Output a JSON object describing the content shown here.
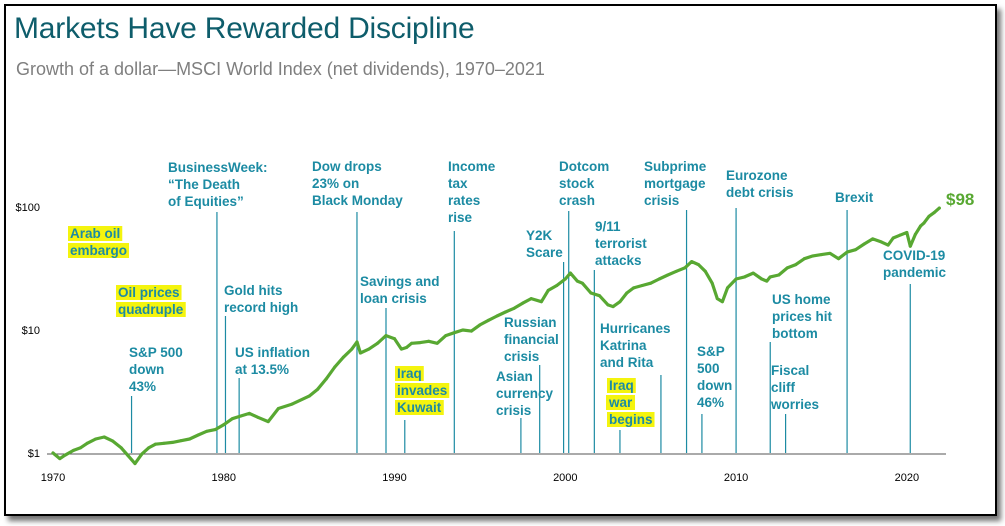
{
  "title": "Markets Have Rewarded Discipline",
  "subtitle": "Growth of a dollar—MSCI World Index (net dividends), 1970–2021",
  "chart_data": {
    "type": "line",
    "y_scale": "log",
    "ylim": [
      1,
      100
    ],
    "xlim": [
      1970,
      2022
    ],
    "y_ticks": [
      {
        "value": 1,
        "label": "$1"
      },
      {
        "value": 10,
        "label": "$10"
      },
      {
        "value": 100,
        "label": "$100"
      }
    ],
    "x_ticks": [
      {
        "value": 1970,
        "label": "1970"
      },
      {
        "value": 1980,
        "label": "1980"
      },
      {
        "value": 1990,
        "label": "1990"
      },
      {
        "value": 2000,
        "label": "2000"
      },
      {
        "value": 2010,
        "label": "2010"
      },
      {
        "value": 2020,
        "label": "2020"
      }
    ],
    "grid": false,
    "line_color": "#58a832",
    "end_label": "$98",
    "series": [
      {
        "x": [
          1970.0,
          1970.4,
          1970.7,
          1971.2,
          1971.6,
          1972.0,
          1972.5,
          1973.0,
          1973.5,
          1974.0,
          1974.4,
          1974.8,
          1975.2,
          1975.6,
          1976.0,
          1976.5,
          1977.0,
          1977.5,
          1978.0,
          1978.5,
          1979.0,
          1979.5,
          1980.0,
          1980.5,
          1981.0,
          1981.5,
          1982.0,
          1982.6,
          1983.2,
          1984.0,
          1985.0,
          1985.5,
          1986.0,
          1986.5,
          1987.0,
          1987.5,
          1987.8,
          1988.0,
          1988.5,
          1989.0,
          1989.5,
          1990.0,
          1990.4,
          1990.7,
          1991.0,
          1991.5,
          1992.0,
          1992.5,
          1993.0,
          1993.5,
          1994.0,
          1994.5,
          1995.0,
          1995.5,
          1996.0,
          1996.5,
          1997.0,
          1997.5,
          1998.0,
          1998.6,
          1999.0,
          1999.5,
          2000.0,
          2000.3,
          2000.7,
          2001.0,
          2001.5,
          2002.0,
          2002.5,
          2002.8,
          2003.2,
          2003.6,
          2004.0,
          2004.5,
          2005.0,
          2005.5,
          2006.0,
          2006.5,
          2007.0,
          2007.4,
          2007.8,
          2008.2,
          2008.6,
          2008.9,
          2009.2,
          2009.5,
          2010.0,
          2010.5,
          2011.0,
          2011.5,
          2011.8,
          2012.0,
          2012.5,
          2013.0,
          2013.5,
          2014.0,
          2014.5,
          2015.0,
          2015.5,
          2016.0,
          2016.5,
          2017.0,
          2017.5,
          2018.0,
          2018.5,
          2018.9,
          2019.2,
          2019.6,
          2020.0,
          2020.2,
          2020.5,
          2020.8,
          2021.0,
          2021.3,
          2021.6,
          2021.9
        ],
        "values": [
          1.0,
          0.9,
          0.96,
          1.05,
          1.1,
          1.2,
          1.3,
          1.35,
          1.25,
          1.1,
          0.95,
          0.82,
          0.98,
          1.1,
          1.18,
          1.2,
          1.22,
          1.26,
          1.3,
          1.4,
          1.5,
          1.55,
          1.7,
          1.9,
          2.0,
          2.1,
          1.95,
          1.8,
          2.3,
          2.5,
          2.9,
          3.3,
          4.0,
          5.0,
          6.0,
          7.0,
          8.0,
          6.5,
          7.0,
          7.8,
          9.0,
          8.5,
          7.0,
          7.2,
          7.8,
          7.9,
          8.1,
          7.8,
          9.0,
          9.5,
          10.0,
          9.8,
          11.0,
          12.0,
          13.0,
          14.0,
          15.0,
          16.5,
          18.0,
          17.0,
          21.0,
          23.0,
          26.0,
          29.0,
          25.0,
          24.0,
          20.0,
          19.0,
          16.0,
          15.5,
          17.0,
          20.0,
          22.0,
          23.0,
          24.0,
          26.0,
          28.0,
          30.0,
          32.0,
          36.0,
          34.0,
          30.0,
          24.0,
          18.0,
          17.0,
          22.0,
          26.0,
          27.0,
          29.0,
          26.0,
          25.0,
          27.0,
          28.0,
          32.0,
          34.0,
          38.0,
          40.0,
          41.0,
          42.0,
          38.0,
          43.0,
          45.0,
          50.0,
          55.0,
          52.0,
          49.0,
          56.0,
          59.0,
          62.0,
          48.0,
          60.0,
          70.0,
          74.0,
          84.0,
          90.0,
          98.0
        ]
      }
    ],
    "annotations": [
      {
        "id": "arab-oil-embargo",
        "year": 1973.8,
        "lines": [
          "Arab oil",
          "embargo"
        ],
        "highlight": true
      },
      {
        "id": "oil-prices-quadruple",
        "year": 1974.0,
        "lines": [
          "Oil prices",
          "quadruple"
        ],
        "highlight": true
      },
      {
        "id": "sp500-down-43",
        "year": 1974.6,
        "lines": [
          "S&P 500",
          "down",
          "43%"
        ],
        "highlight": false
      },
      {
        "id": "businessweek",
        "year": 1979.6,
        "lines": [
          "BusinessWeek:",
          "“The Death",
          "of Equities”"
        ],
        "highlight": false
      },
      {
        "id": "gold-hits-record",
        "year": 1980.1,
        "lines": [
          "Gold hits",
          "record high"
        ],
        "highlight": false
      },
      {
        "id": "us-inflation",
        "year": 1980.9,
        "lines": [
          "US inflation",
          "at 13.5%"
        ],
        "highlight": false
      },
      {
        "id": "dow-drops",
        "year": 1987.8,
        "lines": [
          "Dow drops",
          "23% on",
          "Black Monday"
        ],
        "highlight": false
      },
      {
        "id": "savings-loan",
        "year": 1989.5,
        "lines": [
          "Savings and",
          "loan crisis"
        ],
        "highlight": false
      },
      {
        "id": "iraq-invades-kuwait",
        "year": 1990.6,
        "lines": [
          "Iraq",
          "invades",
          "Kuwait"
        ],
        "highlight": true
      },
      {
        "id": "income-tax",
        "year": 1993.5,
        "lines": [
          "Income",
          "tax",
          "rates",
          "rise"
        ],
        "highlight": false
      },
      {
        "id": "russian-financial",
        "year": 1998.5,
        "lines": [
          "Russian",
          "financial",
          "crisis"
        ],
        "highlight": false
      },
      {
        "id": "asian-currency",
        "year": 1997.4,
        "lines": [
          "Asian",
          "currency",
          "crisis"
        ],
        "highlight": false
      },
      {
        "id": "y2k",
        "year": 1999.9,
        "lines": [
          "Y2K",
          "Scare"
        ],
        "highlight": false
      },
      {
        "id": "dotcom",
        "year": 2000.2,
        "lines": [
          "Dotcom",
          "stock",
          "crash"
        ],
        "highlight": false
      },
      {
        "id": "nine-eleven",
        "year": 2001.7,
        "lines": [
          "9/11",
          "terrorist",
          "attacks"
        ],
        "highlight": false
      },
      {
        "id": "iraq-war",
        "year": 2003.2,
        "lines": [
          "Iraq",
          "war",
          "begins"
        ],
        "highlight": true
      },
      {
        "id": "hurricanes",
        "year": 2005.6,
        "lines": [
          "Hurricanes",
          "Katrina",
          "and Rita"
        ],
        "highlight": false
      },
      {
        "id": "subprime",
        "year": 2007.1,
        "lines": [
          "Subprime",
          "mortgage",
          "crisis"
        ],
        "highlight": false
      },
      {
        "id": "sp500-down-46",
        "year": 2008.0,
        "lines": [
          "S&P",
          "500",
          "down",
          "46%"
        ],
        "highlight": false
      },
      {
        "id": "eurozone",
        "year": 2010.0,
        "lines": [
          "Eurozone",
          "debt crisis"
        ],
        "highlight": false
      },
      {
        "id": "us-home-prices",
        "year": 2012.0,
        "lines": [
          "US home",
          "prices hit",
          "bottom"
        ],
        "highlight": false
      },
      {
        "id": "fiscal-cliff",
        "year": 2012.9,
        "lines": [
          "Fiscal",
          "cliff",
          "worries"
        ],
        "highlight": false
      },
      {
        "id": "brexit",
        "year": 2016.5,
        "lines": [
          "Brexit"
        ],
        "highlight": false
      },
      {
        "id": "covid",
        "year": 2020.2,
        "lines": [
          "COVID-19",
          "pandemic"
        ],
        "highlight": false
      }
    ]
  }
}
